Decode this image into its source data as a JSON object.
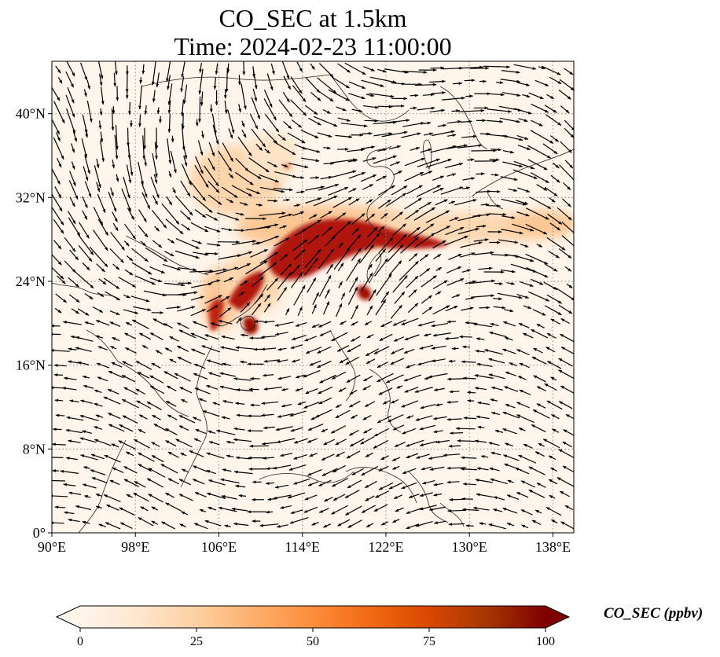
{
  "title": {
    "line1": "CO_SEC at 1.5km",
    "line2": "Time: 2024-02-23 11:00:00"
  },
  "map": {
    "lon_range": [
      90,
      140
    ],
    "lat_range": [
      0,
      45
    ],
    "lon_ticks": [
      {
        "value": 90,
        "label": "90°E"
      },
      {
        "value": 98,
        "label": "98°E"
      },
      {
        "value": 106,
        "label": "106°E"
      },
      {
        "value": 114,
        "label": "114°E"
      },
      {
        "value": 122,
        "label": "122°E"
      },
      {
        "value": 130,
        "label": "130°E"
      },
      {
        "value": 138,
        "label": "138°E"
      }
    ],
    "lat_ticks": [
      {
        "value": 0,
        "label": "0°"
      },
      {
        "value": 8,
        "label": "8°N"
      },
      {
        "value": 16,
        "label": "16°N"
      },
      {
        "value": 24,
        "label": "24°N"
      },
      {
        "value": 32,
        "label": "32°N"
      },
      {
        "value": 40,
        "label": "40°N"
      }
    ],
    "gridlines": "dotted",
    "background_color": "#fff5eb",
    "wind_vectors": "black arrows"
  },
  "colorbar": {
    "label": "CO_SEC (ppbv)",
    "min": 0,
    "max": 100,
    "extend": "both",
    "ticks": [
      {
        "value": 0,
        "label": "0"
      },
      {
        "value": 25,
        "label": "25"
      },
      {
        "value": 50,
        "label": "50"
      },
      {
        "value": 75,
        "label": "75"
      },
      {
        "value": 100,
        "label": "100"
      }
    ],
    "colormap": [
      "#fff5eb",
      "#fee6ce",
      "#fdd0a2",
      "#fdae6b",
      "#fd8d3c",
      "#f16913",
      "#d94801",
      "#a63603",
      "#7f0000"
    ]
  }
}
